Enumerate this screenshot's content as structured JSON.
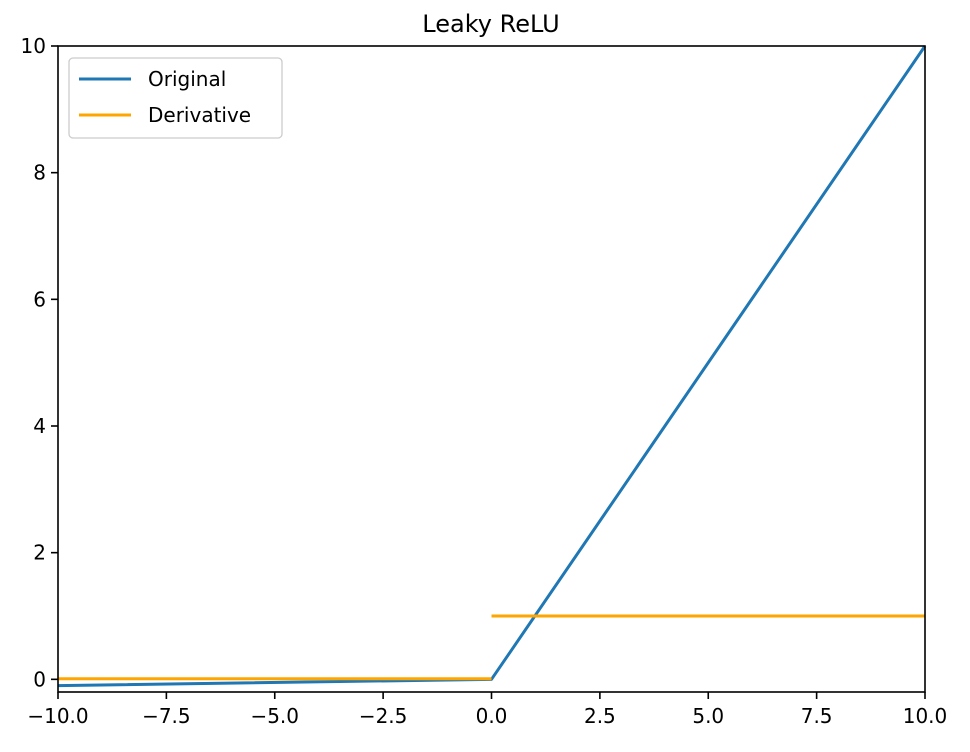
{
  "chart_data": {
    "type": "line",
    "title": "Leaky ReLU",
    "xlabel": "",
    "ylabel": "",
    "xlim": [
      -10,
      10
    ],
    "ylim": [
      -0.2,
      10
    ],
    "x_ticks": [
      -10.0,
      -7.5,
      -5.0,
      -2.5,
      0.0,
      2.5,
      5.0,
      7.5,
      10.0
    ],
    "x_tick_labels": [
      "−10.0",
      "−7.5",
      "−5.0",
      "−2.5",
      "0.0",
      "2.5",
      "5.0",
      "7.5",
      "10.0"
    ],
    "y_ticks": [
      0,
      2,
      4,
      6,
      8,
      10
    ],
    "y_tick_labels": [
      "0",
      "2",
      "4",
      "6",
      "8",
      "10"
    ],
    "grid": false,
    "legend_position": "top-left",
    "series": [
      {
        "name": "Original",
        "color": "#1f77b4",
        "segments": [
          [
            [
              -10,
              -0.1
            ],
            [
              0,
              0
            ],
            [
              10,
              10
            ]
          ]
        ]
      },
      {
        "name": "Derivative",
        "color": "#ffa500",
        "segments": [
          [
            [
              -10,
              0.01
            ],
            [
              0,
              0.01
            ]
          ],
          [
            [
              0,
              1
            ],
            [
              10,
              1
            ]
          ]
        ]
      }
    ]
  }
}
